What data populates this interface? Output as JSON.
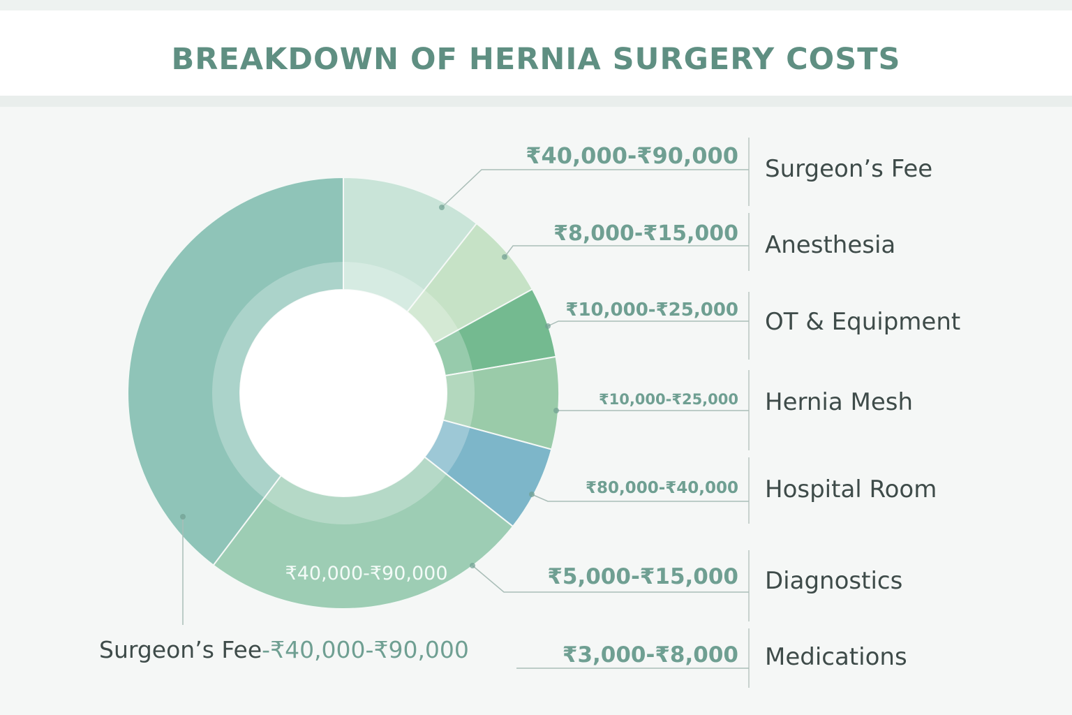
{
  "chart_data": {
    "type": "pie",
    "title": "BREAKDOWN OF HERNIA SURGERY COSTS",
    "donut": true,
    "segments": [
      {
        "share_pct": 10.6,
        "color": "#c9e4d8"
      },
      {
        "share_pct": 6.4,
        "color": "#c6e2c6"
      },
      {
        "share_pct": 5.3,
        "color": "#74ba90"
      },
      {
        "share_pct": 6.9,
        "color": "#9acba9"
      },
      {
        "share_pct": 6.4,
        "color": "#7db6c9"
      },
      {
        "share_pct": 24.7,
        "color": "#9dcdb4",
        "inner_label": "₹40,000-₹90,000"
      },
      {
        "share_pct": 39.7,
        "color": "#8fc4b8"
      }
    ],
    "legend": [
      {
        "name": "Surgeon’s Fee",
        "range": "₹40,000-₹90,000"
      },
      {
        "name": "Anesthesia",
        "range": "₹8,000-₹15,000"
      },
      {
        "name": "OT & Equipment",
        "range": "₹10,000-₹25,000"
      },
      {
        "name": "Hernia Mesh",
        "range": "₹10,000-₹25,000"
      },
      {
        "name": "Hospital Room",
        "range": "₹80,000-₹40,000"
      },
      {
        "name": "Diagnostics",
        "range": "₹5,000-₹15,000"
      },
      {
        "name": "Medications",
        "range": "₹3,000-₹8,000"
      }
    ],
    "callout": {
      "name": "Surgeon’s Fee",
      "range": "-₹40,000-₹90,000"
    }
  }
}
